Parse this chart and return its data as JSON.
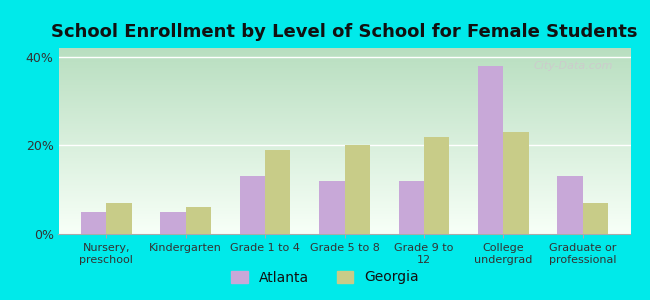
{
  "title": "School Enrollment by Level of School for Female Students",
  "categories": [
    "Nursery,\npreschool",
    "Kindergarten",
    "Grade 1 to 4",
    "Grade 5 to 8",
    "Grade 9 to\n12",
    "College\nundergrad",
    "Graduate or\nprofessional"
  ],
  "atlanta_values": [
    5.0,
    5.0,
    13.0,
    12.0,
    12.0,
    38.0,
    13.0
  ],
  "georgia_values": [
    7.0,
    6.0,
    19.0,
    20.0,
    22.0,
    23.0,
    7.0
  ],
  "atlanta_color": "#c8a8d8",
  "georgia_color": "#c8cc88",
  "ylim": [
    0,
    42
  ],
  "yticks": [
    0,
    20,
    40
  ],
  "ytick_labels": [
    "0%",
    "20%",
    "40%"
  ],
  "background_outer": "#00eaea",
  "background_inner_top": "#b8ddc0",
  "background_inner_bottom": "#f0fdf0",
  "legend_atlanta": "Atlanta",
  "legend_georgia": "Georgia",
  "title_fontsize": 13,
  "watermark": "City-Data.com"
}
